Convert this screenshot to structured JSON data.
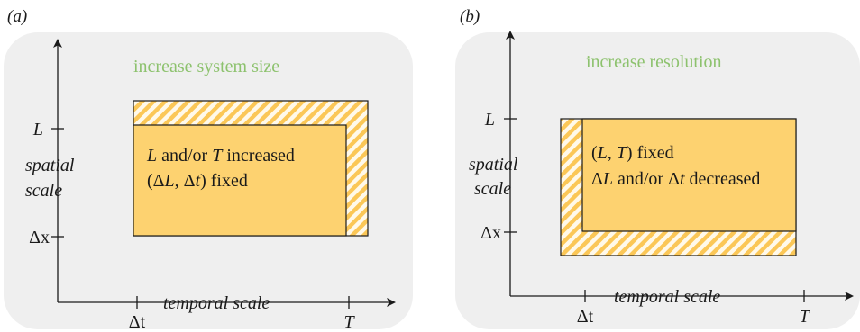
{
  "colors": {
    "panel_bg": "#efefef",
    "box_fill": "#fdd270",
    "hatch_stripe": "#fbc757",
    "hatch_bg": "#fff9ea",
    "heading_green": "#8dc26e",
    "ink": "#1a1a1a"
  },
  "panels": [
    {
      "label": "(a)",
      "heading": "increase system size",
      "box_line1_parts": [
        "L",
        " and/or ",
        "T",
        " increased"
      ],
      "box_line2_parts": [
        "(Δ",
        "L",
        ", Δ",
        "t",
        ") fixed"
      ],
      "y_tick_top": "L",
      "y_tick_bottom": "Δx",
      "x_tick_left": "Δt",
      "x_tick_right": "T",
      "ylabel_line1": "spatial",
      "ylabel_line2": "scale",
      "xlabel": "temporal scale"
    },
    {
      "label": "(b)",
      "heading": "increase resolution",
      "box_line1_parts": [
        "(",
        "L",
        ", ",
        "T",
        ") fixed"
      ],
      "box_line2_parts": [
        "Δ",
        "L",
        " and/or Δ",
        "t",
        " decreased"
      ],
      "y_tick_top": "L",
      "y_tick_bottom": "Δx",
      "x_tick_left": "Δt",
      "x_tick_right": "T",
      "ylabel_line1": "spatial",
      "ylabel_line2": "scale",
      "xlabel": "temporal scale"
    }
  ]
}
